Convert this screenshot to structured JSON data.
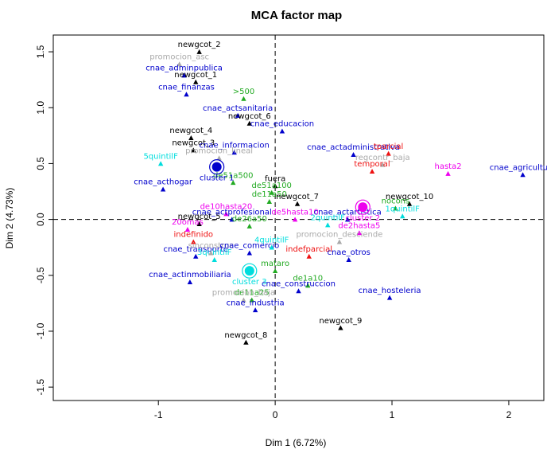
{
  "chart_data": {
    "type": "scatter",
    "title": "MCA factor map",
    "xlabel": "Dim 1 (6.72%)",
    "ylabel": "Dim 2 (4.73%)",
    "xlim": [
      -1.9,
      2.3
    ],
    "ylim": [
      -1.62,
      1.65
    ],
    "xticks": [
      -1,
      0,
      1,
      2
    ],
    "yticks": [
      -1.5,
      -1.0,
      -0.5,
      0.0,
      0.5,
      1.0,
      1.5
    ],
    "grid": false,
    "colors": {
      "black": "#000000",
      "blue": "#0000cc",
      "green": "#22aa22",
      "red": "#ee1111",
      "magenta": "#ee00ee",
      "cyan": "#00dddd",
      "gray": "#aaaaaa"
    },
    "clusters": [
      {
        "label": "cluster 1",
        "x": -0.5,
        "y": 0.47,
        "color": "#0000cc"
      },
      {
        "label": "cluster 2",
        "x": 0.75,
        "y": 0.11,
        "color": "#ee00ee"
      },
      {
        "label": "cluster 3",
        "x": -0.22,
        "y": -0.46,
        "color": "#00dddd"
      }
    ],
    "points": [
      {
        "label": "newgcot_2",
        "x": -0.65,
        "y": 1.5,
        "color": "black"
      },
      {
        "label": "promocion_asc",
        "x": -0.82,
        "y": 1.39,
        "color": "gray"
      },
      {
        "label": "cnae_adminpublica",
        "x": -0.78,
        "y": 1.29,
        "color": "blue"
      },
      {
        "label": "newgcot_1",
        "x": -0.68,
        "y": 1.23,
        "color": "black"
      },
      {
        "label": "cnae_finanzas",
        "x": -0.76,
        "y": 1.12,
        "color": "blue"
      },
      {
        "label": ">500",
        "x": -0.27,
        "y": 1.08,
        "color": "green"
      },
      {
        "label": "cnae_actsanitaria",
        "x": -0.32,
        "y": 0.93,
        "color": "blue"
      },
      {
        "label": "newgcot_6",
        "x": -0.22,
        "y": 0.86,
        "color": "black"
      },
      {
        "label": "cnae_educacion",
        "x": 0.06,
        "y": 0.79,
        "color": "blue"
      },
      {
        "label": "newgcot_4",
        "x": -0.72,
        "y": 0.73,
        "color": "black"
      },
      {
        "label": "newgcot_3",
        "x": -0.7,
        "y": 0.62,
        "color": "black"
      },
      {
        "label": "cnae_informacion",
        "x": -0.35,
        "y": 0.6,
        "color": "blue"
      },
      {
        "label": "promocion_lineal",
        "x": -0.48,
        "y": 0.55,
        "color": "gray"
      },
      {
        "label": "5quintilF",
        "x": -0.98,
        "y": 0.5,
        "color": "cyan"
      },
      {
        "label": "cnae_actadministrativa",
        "x": 0.67,
        "y": 0.58,
        "color": "blue"
      },
      {
        "label": "tparcial",
        "x": 0.97,
        "y": 0.59,
        "color": "red"
      },
      {
        "label": "regcontr_baja",
        "x": 0.92,
        "y": 0.49,
        "color": "gray"
      },
      {
        "label": "temporal",
        "x": 0.83,
        "y": 0.43,
        "color": "red"
      },
      {
        "label": "hasta2",
        "x": 1.48,
        "y": 0.41,
        "color": "magenta"
      },
      {
        "label": "cnae_agricultura",
        "x": 2.12,
        "y": 0.4,
        "color": "blue"
      },
      {
        "label": "de51a500",
        "x": -0.36,
        "y": 0.33,
        "color": "green"
      },
      {
        "label": "cnae_acthogar",
        "x": -0.96,
        "y": 0.27,
        "color": "blue"
      },
      {
        "label": "fuera",
        "x": 0.0,
        "y": 0.3,
        "color": "black"
      },
      {
        "label": "de51a100",
        "x": -0.03,
        "y": 0.24,
        "color": "green"
      },
      {
        "label": "de11a50",
        "x": -0.05,
        "y": 0.16,
        "color": "green"
      },
      {
        "label": "newgcot_7",
        "x": 0.19,
        "y": 0.14,
        "color": "black"
      },
      {
        "label": "newgcot_10",
        "x": 1.15,
        "y": 0.14,
        "color": "black"
      },
      {
        "label": "nocons",
        "x": 1.03,
        "y": 0.1,
        "color": "green"
      },
      {
        "label": "1quintilF",
        "x": 1.09,
        "y": 0.03,
        "color": "cyan"
      },
      {
        "label": "de10hasta20",
        "x": -0.42,
        "y": 0.05,
        "color": "magenta"
      },
      {
        "label": "newgcot_5",
        "x": -0.65,
        "y": -0.04,
        "color": "black"
      },
      {
        "label": "cnae_actprofesional",
        "x": -0.37,
        "y": 0.0,
        "color": "blue"
      },
      {
        "label": "de5hasta10",
        "x": 0.17,
        "y": 0.0,
        "color": "magenta"
      },
      {
        "label": "cnae_actartistica",
        "x": 0.62,
        "y": 0.0,
        "color": "blue"
      },
      {
        "label": "2quintilF",
        "x": 0.45,
        "y": -0.05,
        "color": "cyan"
      },
      {
        "label": "de2hasta5",
        "x": 0.72,
        "y": -0.12,
        "color": "magenta"
      },
      {
        "label": "20omas",
        "x": -0.75,
        "y": -0.09,
        "color": "magenta"
      },
      {
        "label": "de26a50",
        "x": -0.22,
        "y": -0.06,
        "color": "green"
      },
      {
        "label": "promocion_desciende",
        "x": 0.55,
        "y": -0.2,
        "color": "gray"
      },
      {
        "label": "indefinido",
        "x": -0.7,
        "y": -0.2,
        "color": "red"
      },
      {
        "label": "cnae_transporte",
        "x": -0.68,
        "y": -0.33,
        "color": "blue"
      },
      {
        "label": "3quintilF",
        "x": -0.52,
        "y": -0.36,
        "color": "cyan"
      },
      {
        "label": "sinconstruc",
        "x": -0.55,
        "y": -0.3,
        "color": "gray"
      },
      {
        "label": "cnae_comercio",
        "x": -0.22,
        "y": -0.3,
        "color": "blue"
      },
      {
        "label": "4quintilF",
        "x": -0.03,
        "y": -0.25,
        "color": "cyan"
      },
      {
        "label": "indefparcial",
        "x": 0.29,
        "y": -0.33,
        "color": "red"
      },
      {
        "label": "cnae_otros",
        "x": 0.63,
        "y": -0.36,
        "color": "blue"
      },
      {
        "label": "mataro",
        "x": 0.0,
        "y": -0.46,
        "color": "green"
      },
      {
        "label": "cnae_actinmobiliaria",
        "x": -0.73,
        "y": -0.56,
        "color": "blue"
      },
      {
        "label": "de1a10",
        "x": 0.28,
        "y": -0.59,
        "color": "green"
      },
      {
        "label": "cnae_construccion",
        "x": 0.2,
        "y": -0.64,
        "color": "blue"
      },
      {
        "label": "de11a25",
        "x": -0.2,
        "y": -0.72,
        "color": "green"
      },
      {
        "label": "promocion_baja",
        "x": -0.27,
        "y": -0.72,
        "color": "gray"
      },
      {
        "label": "cnae_hosteleria",
        "x": 0.98,
        "y": -0.7,
        "color": "blue"
      },
      {
        "label": "cnae_industria",
        "x": -0.17,
        "y": -0.81,
        "color": "blue"
      },
      {
        "label": "newgcot_9",
        "x": 0.56,
        "y": -0.97,
        "color": "black"
      },
      {
        "label": "newgcot_8",
        "x": -0.25,
        "y": -1.1,
        "color": "black"
      }
    ]
  }
}
